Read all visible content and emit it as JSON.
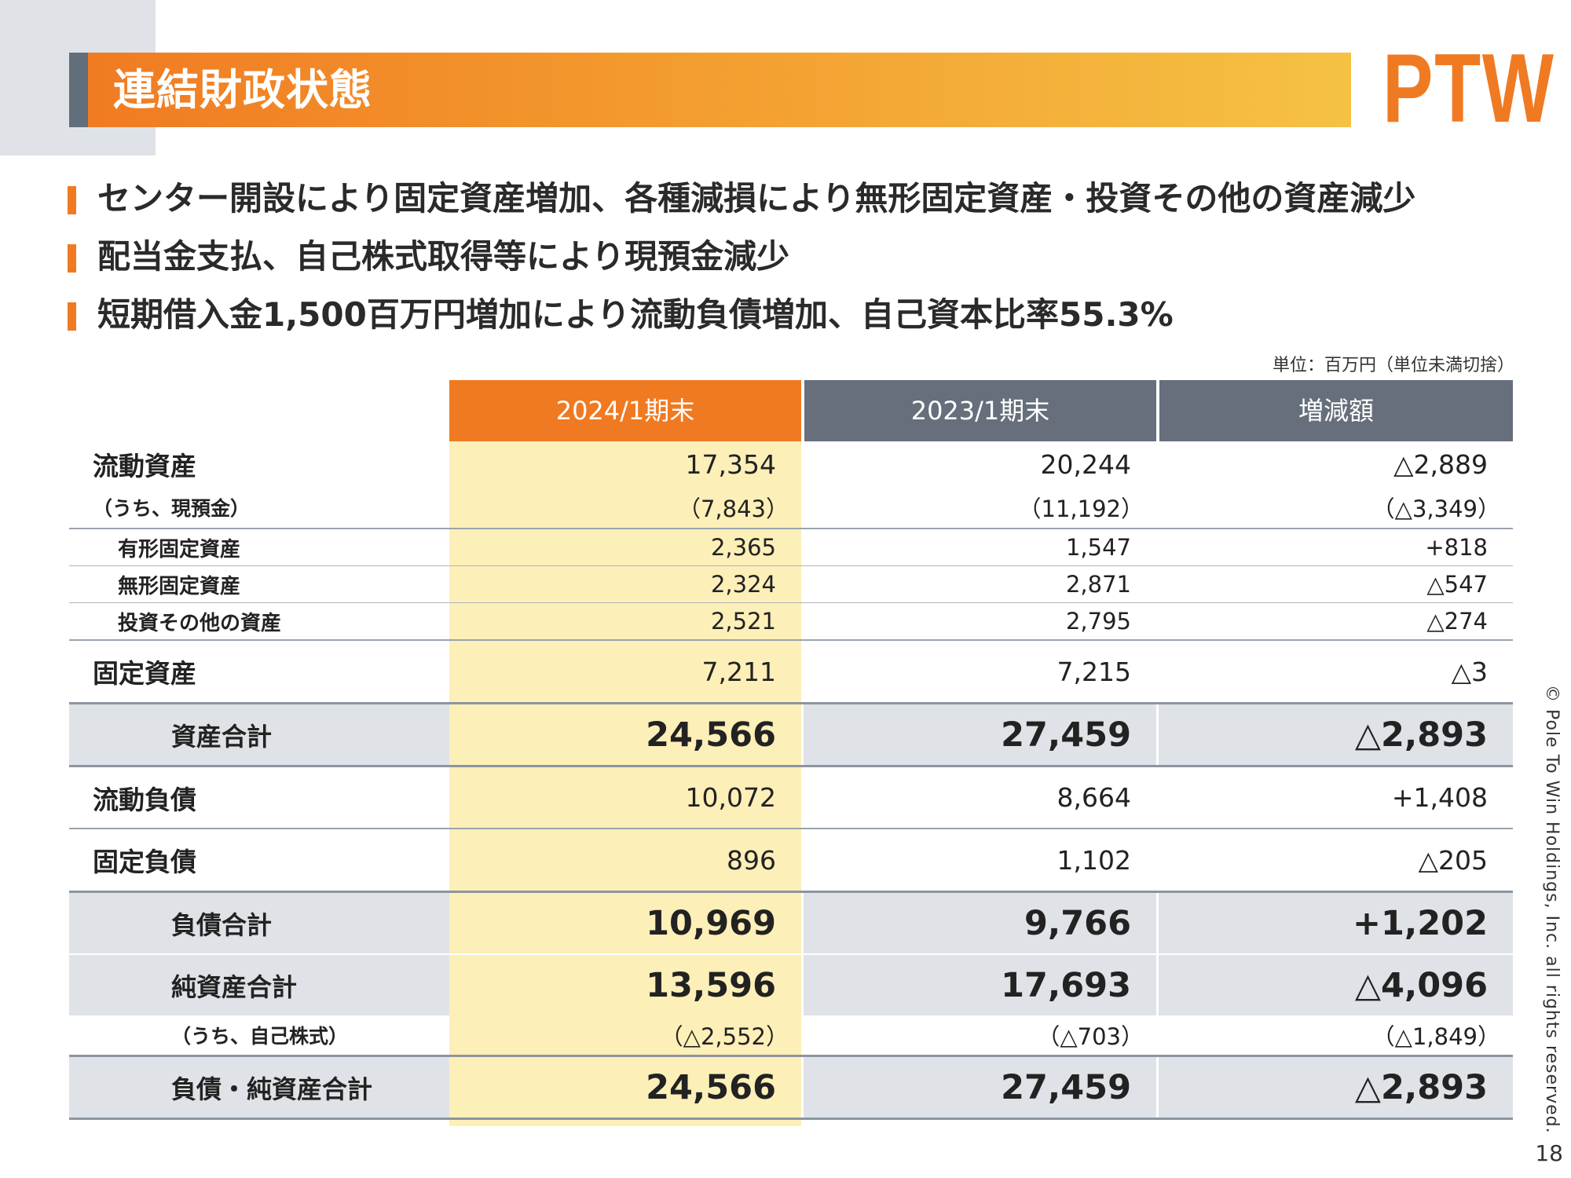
{
  "header": {
    "title": "連結財政状態",
    "logo": "PTW"
  },
  "bullets": [
    "センター開設により固定資産増加、各種減損により無形固定資産・投資その他の資産減少",
    "配当金支払、自己株式取得等により現預金減少",
    "短期借入金1,500百万円増加により流動負債増加、自己資本比率55.3%"
  ],
  "unit_note": "単位：百万円（単位未満切捨）",
  "table": {
    "columns": [
      "2024/1期末",
      "2023/1期末",
      "増減額"
    ],
    "rows": [
      {
        "label": "流動資産",
        "values": [
          "17,354",
          "20,244",
          "△2,889"
        ]
      },
      {
        "label": "（うち、現預金）",
        "values": [
          "（7,843）",
          "（11,192）",
          "（△3,349）"
        ]
      },
      {
        "label": "有形固定資産",
        "values": [
          "2,365",
          "1,547",
          "+818"
        ]
      },
      {
        "label": "無形固定資産",
        "values": [
          "2,324",
          "2,871",
          "△547"
        ]
      },
      {
        "label": "投資その他の資産",
        "values": [
          "2,521",
          "2,795",
          "△274"
        ]
      },
      {
        "label": "固定資産",
        "values": [
          "7,211",
          "7,215",
          "△3"
        ]
      },
      {
        "label": "資産合計",
        "values": [
          "24,566",
          "27,459",
          "△2,893"
        ]
      },
      {
        "label": "流動負債",
        "values": [
          "10,072",
          "8,664",
          "+1,408"
        ]
      },
      {
        "label": "固定負債",
        "values": [
          "896",
          "1,102",
          "△205"
        ]
      },
      {
        "label": "負債合計",
        "values": [
          "10,969",
          "9,766",
          "+1,202"
        ]
      },
      {
        "label": "純資産合計",
        "values": [
          "13,596",
          "17,693",
          "△4,096"
        ]
      },
      {
        "label": "（うち、自己株式）",
        "values": [
          "（△2,552）",
          "（△703）",
          "（△1,849）"
        ]
      },
      {
        "label": "負債・純資産合計",
        "values": [
          "24,566",
          "27,459",
          "△2,893"
        ]
      }
    ]
  },
  "footer": {
    "copyright": "© Pole To Win Holdings, Inc. all rights reserved.",
    "page_number": "18"
  },
  "colors": {
    "accent": "#f07a22",
    "header_gray": "#666f7b",
    "highlight": "#fdefb8",
    "total_row": "#dfe3e7"
  }
}
